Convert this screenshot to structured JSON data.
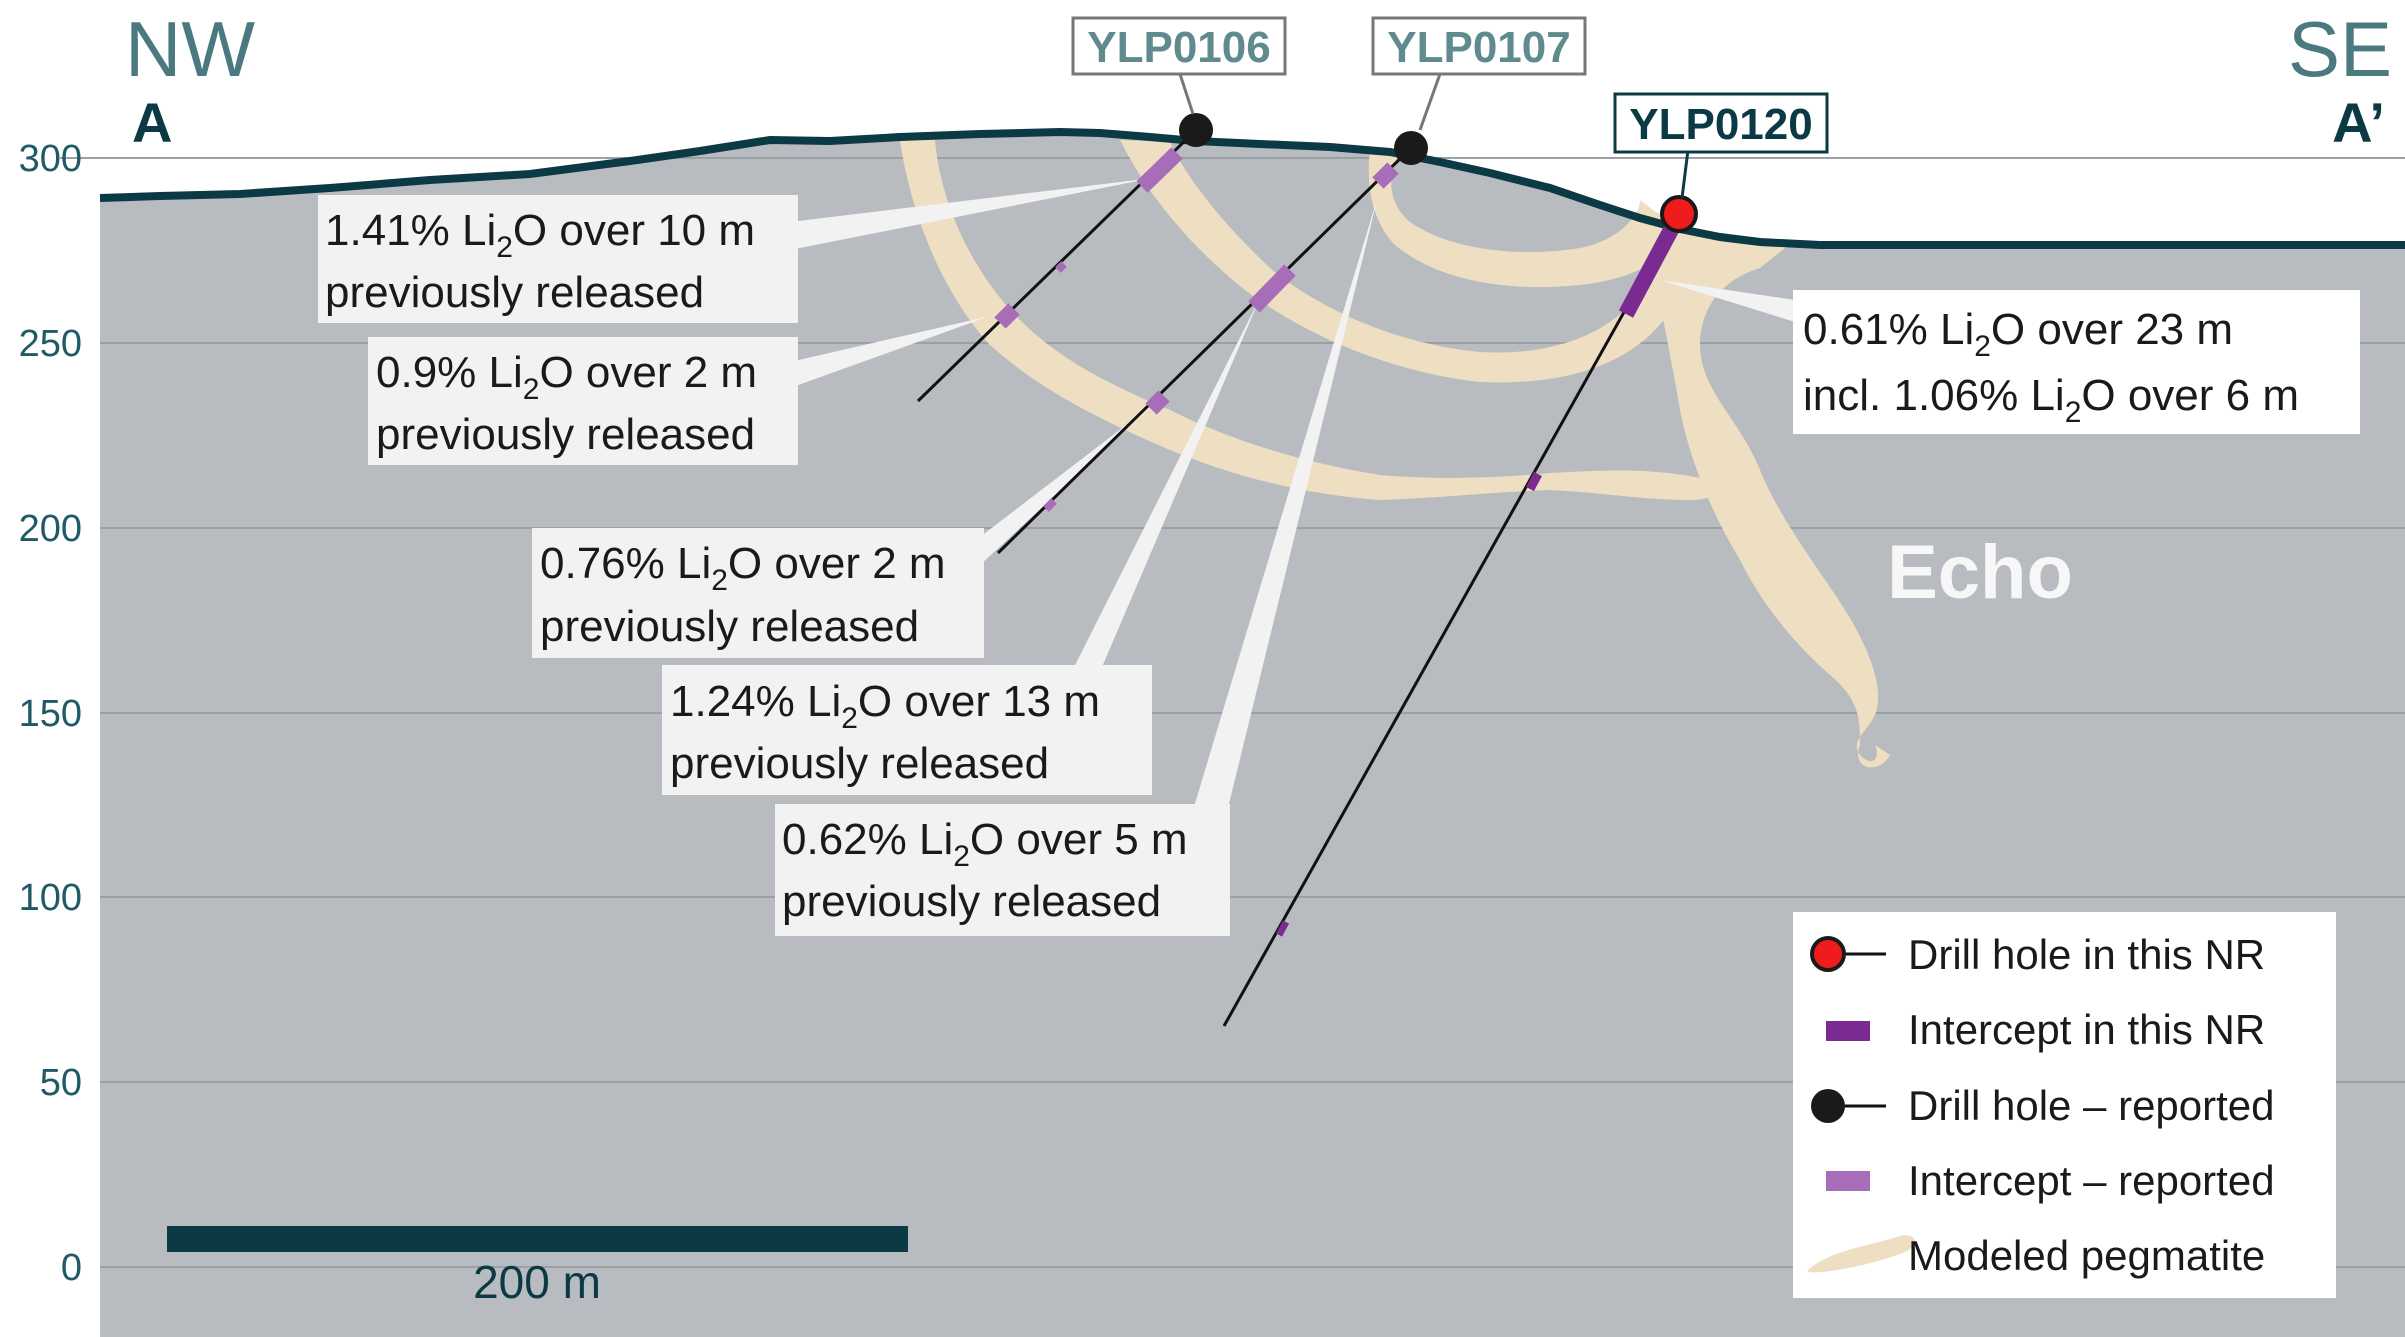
{
  "section": {
    "left_dir": "NW",
    "left_label": "A",
    "right_dir": "SE",
    "right_label": "A’",
    "zone_label": "Echo",
    "scale_bar_label": "200 m"
  },
  "y_axis": {
    "ticks": [
      "300",
      "250",
      "200",
      "150",
      "100",
      "50",
      "0"
    ]
  },
  "drill_holes": [
    {
      "name": "YLP0106",
      "status": "reported"
    },
    {
      "name": "YLP0107",
      "status": "reported"
    },
    {
      "name": "YLP0120",
      "status": "this NR"
    }
  ],
  "callouts": [
    {
      "grade": "1.41% Li",
      "sub": "2",
      "rest": "O over 10 m",
      "line2": "previously released"
    },
    {
      "grade": "0.9% Li",
      "sub": "2",
      "rest": "O over 2 m",
      "line2": "previously released"
    },
    {
      "grade": "0.76% Li",
      "sub": "2",
      "rest": "O over 2 m",
      "line2": "previously released"
    },
    {
      "grade": "1.24% Li",
      "sub": "2",
      "rest": "O over 13 m",
      "line2": "previously released"
    },
    {
      "grade": "0.62% Li",
      "sub": "2",
      "rest": "O over 5 m",
      "line2": "previously released"
    },
    {
      "grade": "0.61% Li",
      "sub": "2",
      "rest": "O over 23 m",
      "line2_a": "incl. 1.06% Li",
      "line2_sub": "2",
      "line2_b": "O over 6 m"
    }
  ],
  "legend": {
    "items": [
      {
        "label": "Drill hole in this NR",
        "symbol": "red-collar"
      },
      {
        "label": "Intercept in this NR",
        "symbol": "dark-purple-bar"
      },
      {
        "label": "Drill hole – reported",
        "symbol": "black-collar"
      },
      {
        "label": "Intercept – reported",
        "symbol": "light-purple-bar"
      },
      {
        "label": "Modeled pegmatite",
        "symbol": "pegmatite-swatch"
      }
    ]
  },
  "colors": {
    "bedrock": "#b8bcc0",
    "topography": "#0b3a44",
    "pegmatite": "#eedfc2",
    "gridline": "#9aa0a4",
    "intercept_this_nr": "#7b2a91",
    "intercept_reported": "#a86db8",
    "collar_this_nr": "#ee1c1c",
    "collar_reported": "#1a1a1a",
    "axis_text": "#1f5a66",
    "direction_text": "#4a7a80"
  }
}
